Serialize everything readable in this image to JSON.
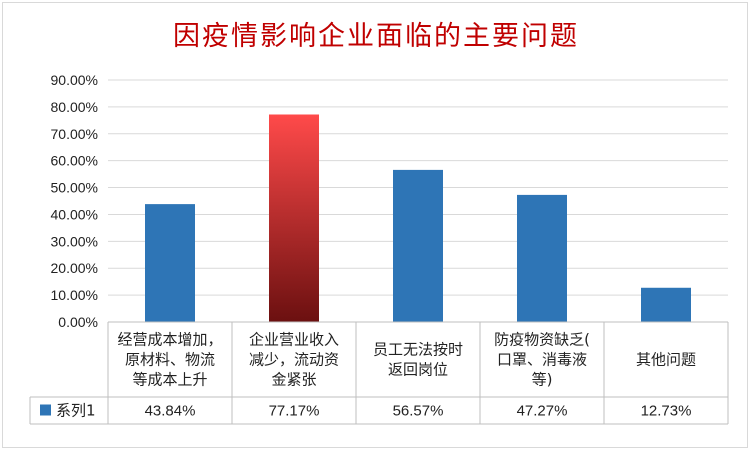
{
  "chart_data": {
    "type": "bar",
    "title": "因疫情影响企业面临的主要问题",
    "categories": [
      [
        "经营成本增加，",
        "原材料、物流",
        "等成本上升"
      ],
      [
        "企业营业收入",
        "减少，流动资",
        "金紧张"
      ],
      [
        "员工无法按时",
        "返回岗位"
      ],
      [
        "防疫物资缺乏(",
        "口罩、消毒液",
        "等)"
      ],
      [
        "其他问题"
      ]
    ],
    "series": [
      {
        "name": "系列1",
        "values": [
          43.84,
          77.17,
          56.57,
          47.27,
          12.73
        ],
        "labels": [
          "43.84%",
          "77.17%",
          "56.57%",
          "47.27%",
          "12.73%"
        ]
      }
    ],
    "ylim": [
      0,
      90
    ],
    "yticks": [
      "0.00%",
      "10.00%",
      "20.00%",
      "30.00%",
      "40.00%",
      "50.00%",
      "60.00%",
      "70.00%",
      "80.00%",
      "90.00%"
    ],
    "grid": true,
    "legend": "data-table",
    "colors": {
      "bar": "#2e75b6",
      "highlight_top": "#ff4a4a",
      "highlight_bottom": "#6b1010",
      "highlight_index": 1,
      "title": "#c00000"
    }
  }
}
